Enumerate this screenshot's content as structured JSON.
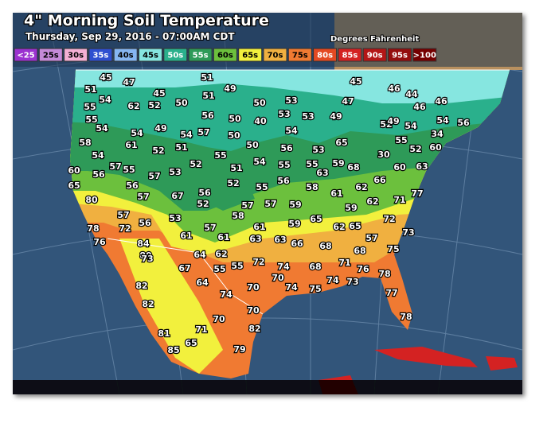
{
  "header": {
    "title": "4\" Morning Soil Temperature",
    "subtitle": "Thursday, Sep 29, 2016 - 07:00AM CDT",
    "units": "Degrees Fahrenheit"
  },
  "legend": [
    {
      "label": "<25",
      "color": "#9b30d0"
    },
    {
      "label": "25s",
      "color": "#c58ad8"
    },
    {
      "label": "30s",
      "color": "#f4b0d4"
    },
    {
      "label": "35s",
      "color": "#2f4fd0"
    },
    {
      "label": "40s",
      "color": "#86b6f2"
    },
    {
      "label": "45s",
      "color": "#86e6e0"
    },
    {
      "label": "50s",
      "color": "#2cb08c"
    },
    {
      "label": "55s",
      "color": "#2f9a58"
    },
    {
      "label": "60s",
      "color": "#6cc03c"
    },
    {
      "label": "65s",
      "color": "#f2f03c"
    },
    {
      "label": "70s",
      "color": "#f0b040"
    },
    {
      "label": "75s",
      "color": "#f07a30"
    },
    {
      "label": "80s",
      "color": "#e44a22"
    },
    {
      "label": "85s",
      "color": "#d42424"
    },
    {
      "label": "90s",
      "color": "#b41414"
    },
    {
      "label": "95s",
      "color": "#941010"
    },
    {
      "label": ">100",
      "color": "#740000"
    }
  ],
  "stations": [
    45,
    47,
    51,
    51,
    49,
    45,
    46,
    44,
    46,
    46,
    51,
    54,
    62,
    52,
    45,
    50,
    50,
    53,
    47,
    55,
    55,
    54,
    54,
    49,
    54,
    57,
    56,
    50,
    40,
    53,
    53,
    49,
    52,
    49,
    54,
    54,
    56,
    54,
    50,
    50,
    58,
    61,
    52,
    51,
    56,
    53,
    65,
    55,
    34,
    60,
    54,
    55,
    52,
    57,
    55,
    57,
    53,
    54,
    55,
    55,
    51,
    59,
    68,
    30,
    52,
    60,
    63,
    60,
    56,
    66,
    63,
    56,
    65,
    56,
    52,
    55,
    58,
    61,
    62,
    77,
    80,
    57,
    67,
    56,
    52,
    57,
    57,
    59,
    59,
    62,
    71,
    58,
    65,
    57,
    53,
    72,
    59,
    61,
    62,
    65,
    78,
    72,
    56,
    57,
    73,
    57,
    61,
    61,
    63,
    63,
    66,
    68,
    76,
    84,
    80,
    68,
    75,
    64,
    62,
    72,
    74,
    73,
    68,
    71,
    76,
    67,
    55,
    55,
    78,
    70,
    74,
    73,
    82,
    64,
    70,
    74,
    75,
    77,
    82,
    74,
    70,
    78,
    70,
    71,
    82,
    81,
    85,
    65,
    79
  ]
}
